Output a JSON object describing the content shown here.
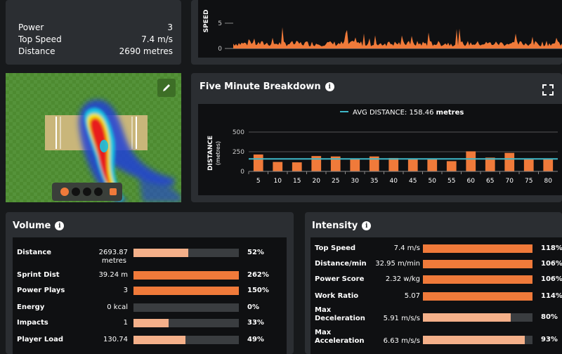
{
  "summary": {
    "rows": [
      {
        "label": "Power",
        "value": "3"
      },
      {
        "label": "Top Speed",
        "value": "7.4 m/s"
      },
      {
        "label": "Distance",
        "value": "2690 metres"
      }
    ]
  },
  "speed_chart": {
    "ylabel": "SPEED",
    "ticks": [
      "5",
      "0"
    ]
  },
  "heatmap": {
    "edit_icon": "pencil-icon",
    "dots": [
      "orange",
      "black",
      "black",
      "black"
    ],
    "lock_icon": "lock-icon"
  },
  "breakdown": {
    "title": "Five Minute Breakdown",
    "expand_icon": "expand-icon",
    "legend_label": "AVG DISTANCE:",
    "legend_value": "158.46",
    "legend_unit": "metres",
    "ylabel": "DISTANCE",
    "ysub": "(metres)",
    "colors": {
      "bar": "#f07a3a",
      "avg": "#3fb8c8"
    }
  },
  "chart_data": {
    "type": "bar",
    "categories": [
      "5",
      "10",
      "15",
      "20",
      "25",
      "30",
      "35",
      "40",
      "45",
      "50",
      "55",
      "60",
      "65",
      "70",
      "75",
      "80"
    ],
    "values": [
      215,
      120,
      115,
      195,
      190,
      165,
      190,
      170,
      160,
      165,
      130,
      255,
      175,
      235,
      160,
      165
    ],
    "average": 158.46,
    "ylabel": "DISTANCE (metres)",
    "yticks": [
      0,
      250,
      500
    ],
    "ylim": [
      0,
      500
    ]
  },
  "volume": {
    "title": "Volume",
    "rows": [
      {
        "label": "Distance",
        "value": "2693.87",
        "value2": "metres",
        "pct": "52%",
        "fraction": 0.52,
        "light": true
      },
      {
        "label": "Sprint Dist",
        "value": "39.24 m",
        "pct": "262%",
        "fraction": 1.0,
        "light": false
      },
      {
        "label": "Power Plays",
        "value": "3",
        "pct": "150%",
        "fraction": 1.0,
        "light": false
      },
      {
        "label": "Energy",
        "value": "0 kcal",
        "pct": "0%",
        "fraction": 0.0,
        "light": true
      },
      {
        "label": "Impacts",
        "value": "1",
        "pct": "33%",
        "fraction": 0.33,
        "light": true
      },
      {
        "label": "Player Load",
        "value": "130.74",
        "pct": "49%",
        "fraction": 0.49,
        "light": true
      }
    ]
  },
  "intensity": {
    "title": "Intensity",
    "rows": [
      {
        "label": "Top Speed",
        "value": "7.4 m/s",
        "pct": "118%",
        "fraction": 1.0,
        "light": false
      },
      {
        "label": "Distance/min",
        "value": "32.95 m/min",
        "pct": "106%",
        "fraction": 1.0,
        "light": false
      },
      {
        "label": "Power Score",
        "value": "2.32 w/kg",
        "pct": "106%",
        "fraction": 1.0,
        "light": false
      },
      {
        "label": "Work Ratio",
        "value": "5.07",
        "pct": "114%",
        "fraction": 1.0,
        "light": false
      },
      {
        "label": "Max",
        "label2": "Deceleration",
        "value": "5.91 m/s/s",
        "pct": "80%",
        "fraction": 0.8,
        "light": true
      },
      {
        "label": "Max",
        "label2": "Acceleration",
        "value": "6.63 m/s/s",
        "pct": "93%",
        "fraction": 0.93,
        "light": true
      }
    ]
  },
  "colors": {
    "orange": "#f07a3a",
    "peach": "#f4b08a",
    "track": "#3a3d40"
  }
}
